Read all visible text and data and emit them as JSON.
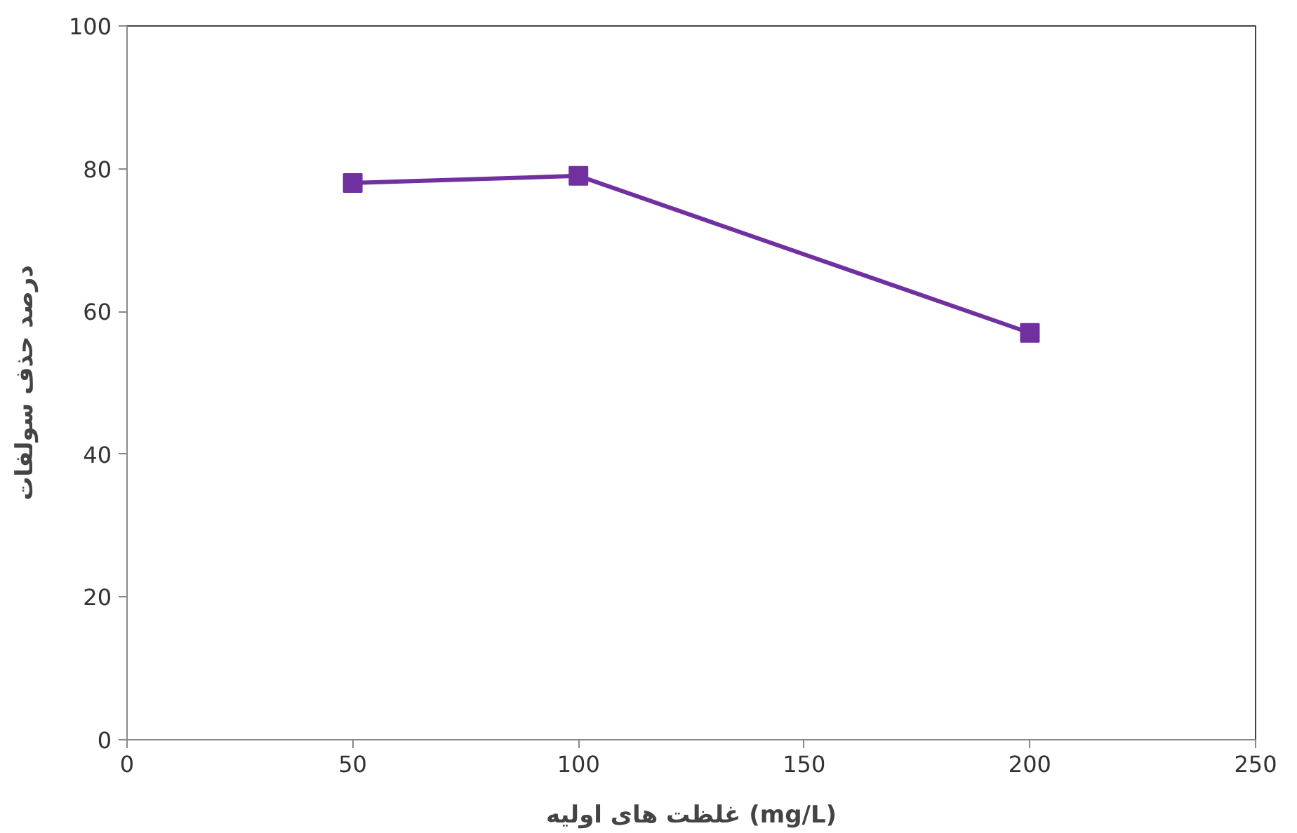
{
  "chart_data": {
    "type": "line",
    "xlabel": "غلظت های اولیه (mg/L)",
    "ylabel": "درصد حذف سولفات",
    "x": [
      50,
      100,
      200
    ],
    "series": [
      {
        "color": "#7030a0",
        "values": [
          78,
          79,
          57
        ]
      }
    ],
    "xlim": [
      0,
      250
    ],
    "xticks": [
      0,
      50,
      100,
      150,
      200,
      250
    ],
    "ylim": [
      0,
      100
    ],
    "yticks": [
      0,
      20,
      40,
      60,
      80,
      100
    ],
    "grid": false,
    "marker": "square",
    "line_style": "solid"
  }
}
